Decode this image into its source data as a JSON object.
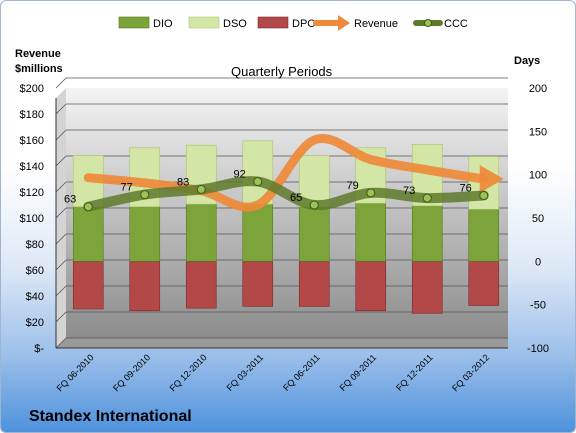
{
  "chart_data": {
    "type": "bar",
    "title": "Quarterly Periods",
    "company": "Standex International",
    "left_axis_label_line1": "Revenue",
    "left_axis_label_line2": "$millions",
    "right_axis_label": "Days",
    "categories": [
      "FQ 06-2010",
      "FQ 09-2010",
      "FQ 12-2010",
      "FQ 03-2011",
      "FQ 06-2011",
      "FQ 09-2011",
      "FQ 12-2011",
      "FQ 03-2012"
    ],
    "left_ticks": [
      "$200",
      "$180",
      "$160",
      "$140",
      "$120",
      "$100",
      "$80",
      "$60",
      "$40",
      "$20",
      "$-"
    ],
    "right_ticks": [
      "200",
      "150",
      "100",
      "50",
      "0",
      "-50",
      "-100"
    ],
    "left_ylim": [
      0,
      200
    ],
    "right_ylim": [
      -100,
      200
    ],
    "legend_position": "top",
    "series": [
      {
        "name": "DIO",
        "axis": "right",
        "color": "#7da43a",
        "values": [
          63,
          63,
          66,
          66,
          63,
          67,
          64,
          60
        ]
      },
      {
        "name": "DSO",
        "axis": "right",
        "color": "#d4e6a5",
        "values": [
          59,
          68,
          68,
          73,
          59,
          64,
          71,
          61
        ]
      },
      {
        "name": "DPO",
        "axis": "right",
        "color": "#b24848",
        "values": [
          -55,
          -57,
          -54,
          -52,
          -52,
          -57,
          -60,
          -51
        ]
      },
      {
        "name": "Revenue",
        "axis": "left",
        "color": "#ee8a3a",
        "values": [
          131,
          127,
          121,
          110,
          160,
          145,
          137,
          130
        ]
      },
      {
        "name": "CCC",
        "axis": "right",
        "color": "#5e7a2c",
        "values": [
          63,
          77,
          83,
          92,
          65,
          79,
          73,
          76
        ]
      }
    ],
    "grid": true
  }
}
